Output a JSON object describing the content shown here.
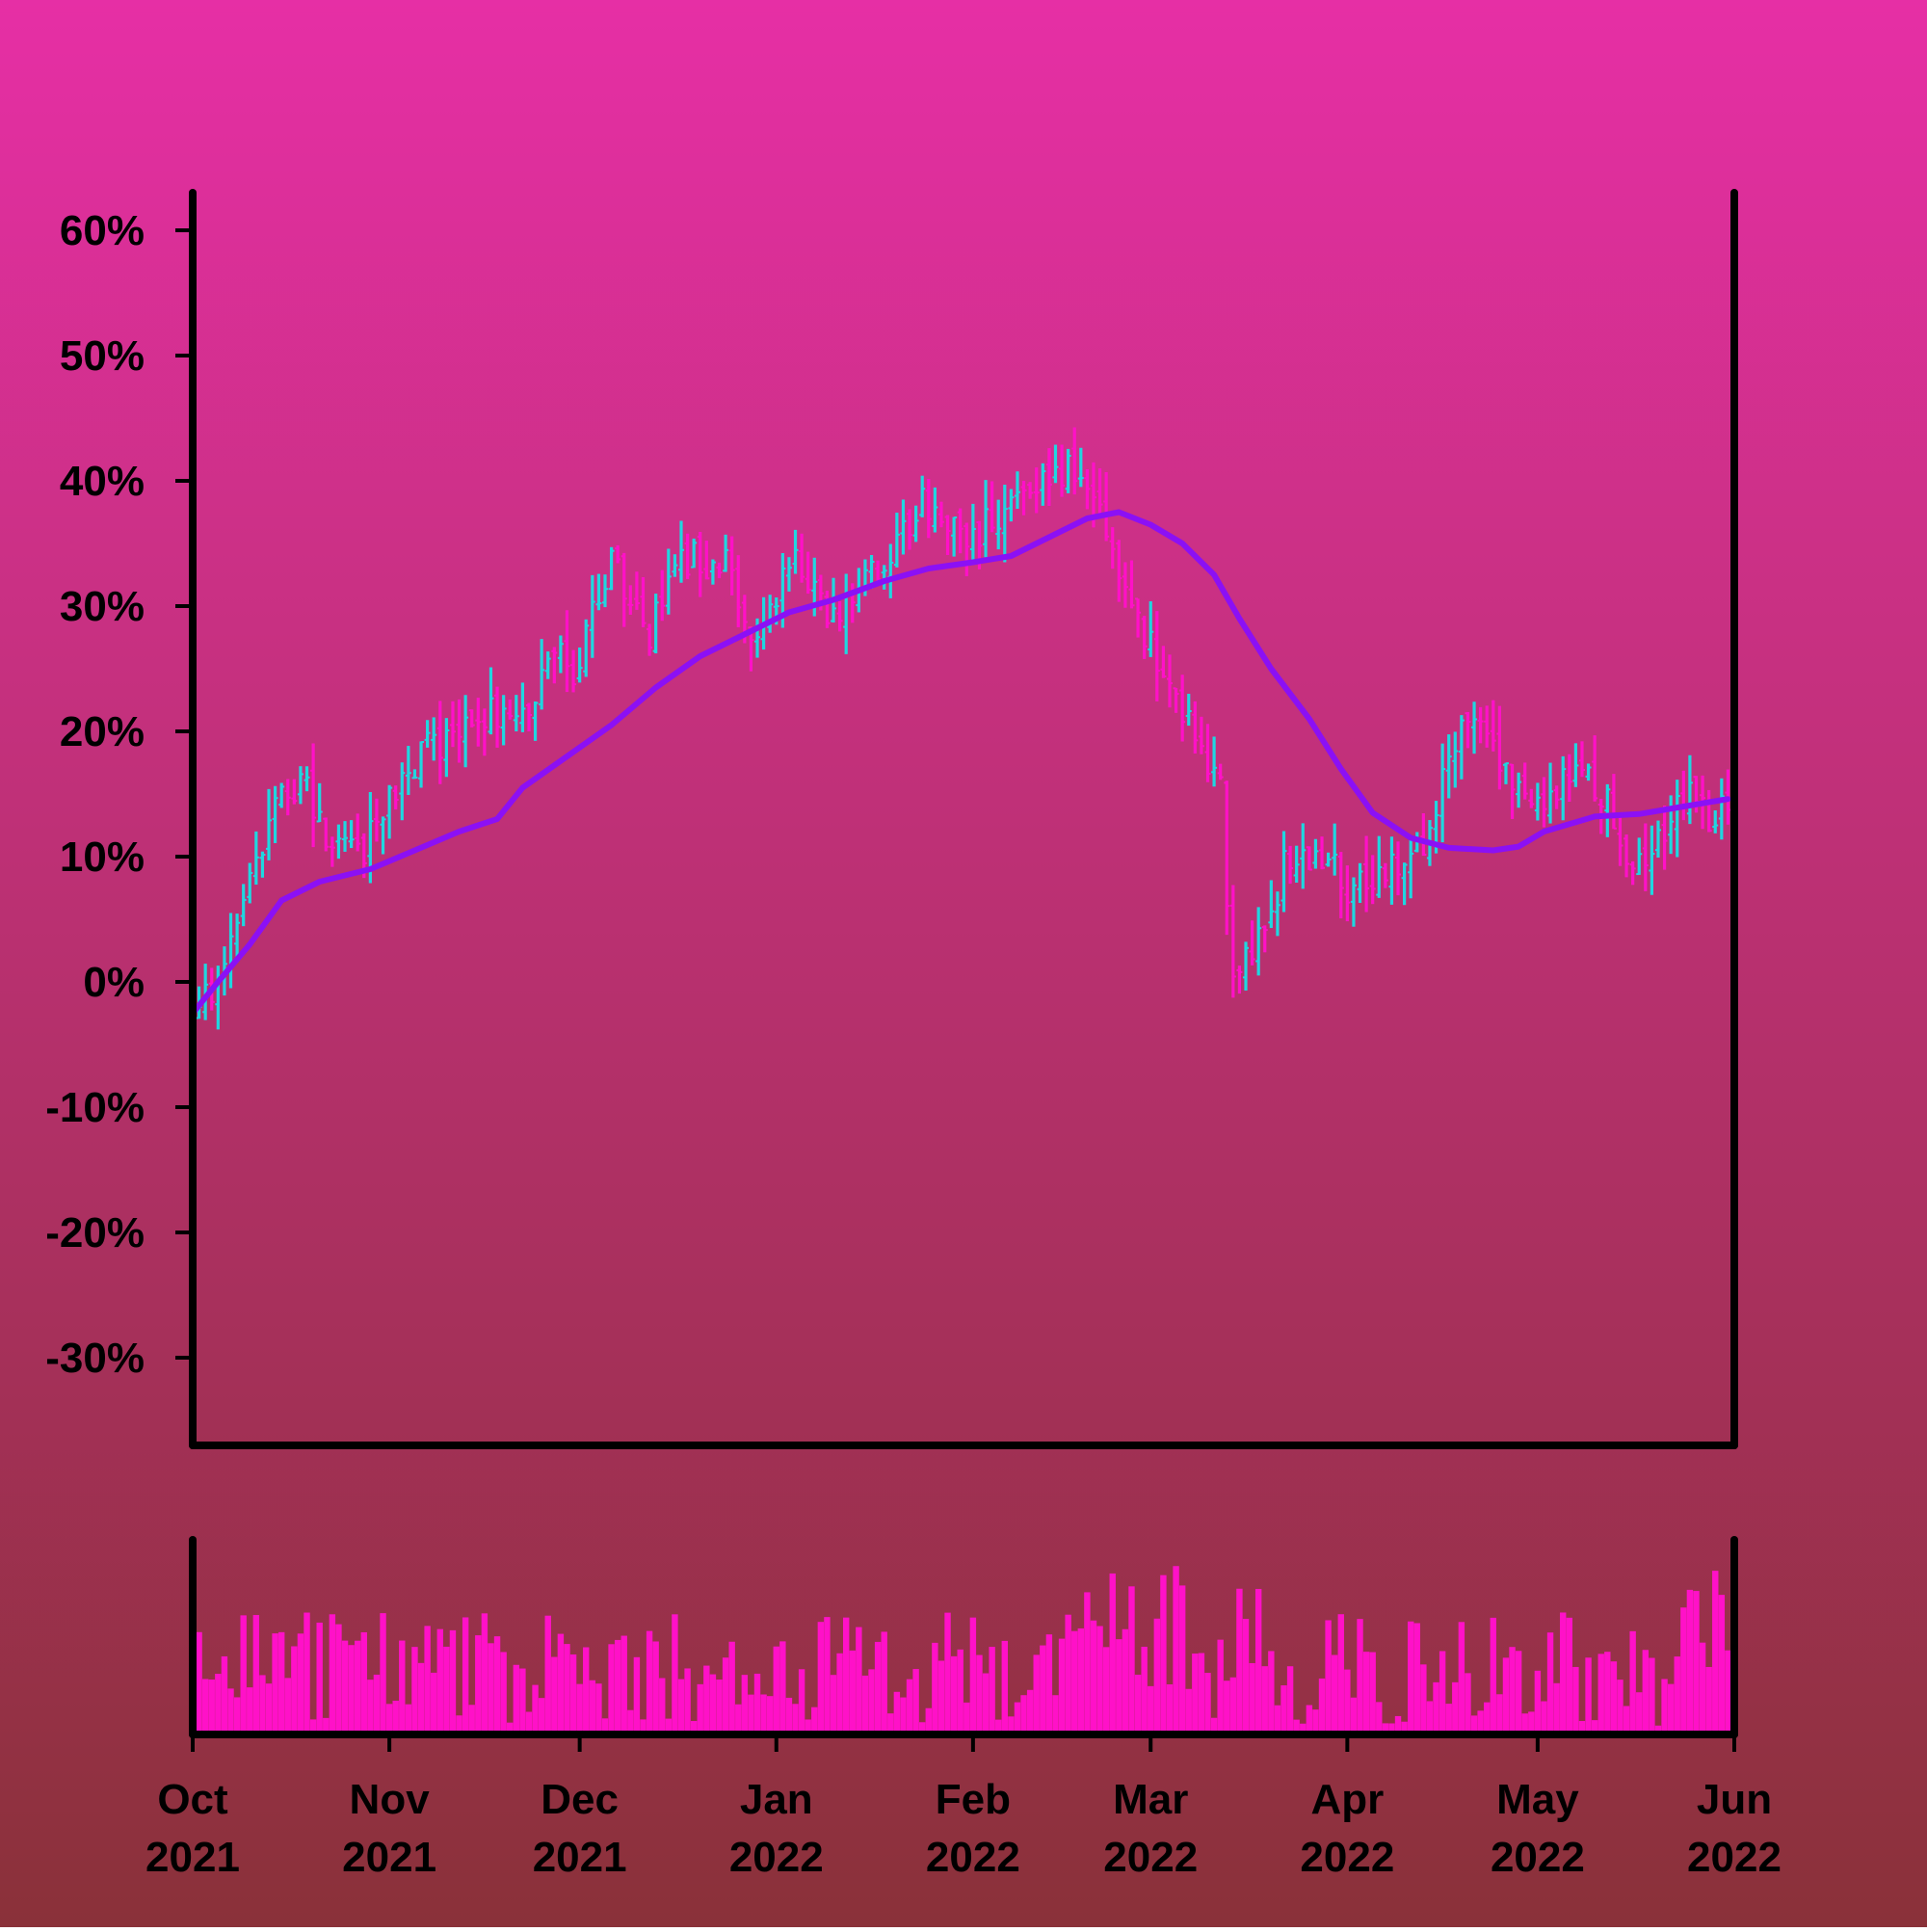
{
  "colors": {
    "background_top": "#E62FA5",
    "background_bottom": "#8A3139",
    "up": "#1FD7E0",
    "down": "#FF11C8",
    "moving_average": "#8B10F5",
    "volume": "#FF11C8",
    "axis": "#000000"
  },
  "chart_data": {
    "type": "ohlc",
    "title": "",
    "xlabel": "",
    "ylabel": "",
    "x_range": [
      "2021-10-01",
      "2022-06-01"
    ],
    "y_range": [
      -0.37,
      0.63
    ],
    "y_scale": "linear",
    "y_ticks": [
      -0.3,
      -0.2,
      -0.1,
      0.0,
      0.1,
      0.2,
      0.3,
      0.4,
      0.5,
      0.6
    ],
    "y_tick_labels": [
      "-30%",
      "-20%",
      "-10%",
      "0%",
      "10%",
      "20%",
      "30%",
      "40%",
      "50%",
      "60%"
    ],
    "x_ticks": [
      {
        "date": "2021-10-01",
        "month": "Oct",
        "year": "2021"
      },
      {
        "date": "2021-11-01",
        "month": "Nov",
        "year": "2021"
      },
      {
        "date": "2021-12-01",
        "month": "Dec",
        "year": "2021"
      },
      {
        "date": "2022-01-01",
        "month": "Jan",
        "year": "2022"
      },
      {
        "date": "2022-02-01",
        "month": "Feb",
        "year": "2022"
      },
      {
        "date": "2022-03-01",
        "month": "Mar",
        "year": "2022"
      },
      {
        "date": "2022-04-01",
        "month": "Apr",
        "year": "2022"
      },
      {
        "date": "2022-05-01",
        "month": "May",
        "year": "2022"
      },
      {
        "date": "2022-06-01",
        "month": "Jun",
        "year": "2022"
      }
    ],
    "grid": false,
    "legend": "none",
    "price_anchors": [
      [
        "2021-10-01",
        -0.03
      ],
      [
        "2021-10-05",
        0.0
      ],
      [
        "2021-10-08",
        0.05
      ],
      [
        "2021-10-14",
        0.14
      ],
      [
        "2021-10-18",
        0.16
      ],
      [
        "2021-10-22",
        0.12
      ],
      [
        "2021-10-27",
        0.1
      ],
      [
        "2021-11-03",
        0.16
      ],
      [
        "2021-11-08",
        0.19
      ],
      [
        "2021-11-13",
        0.2
      ],
      [
        "2021-11-19",
        0.22
      ],
      [
        "2021-11-23",
        0.21
      ],
      [
        "2021-11-27",
        0.27
      ],
      [
        "2021-11-30",
        0.24
      ],
      [
        "2021-12-06",
        0.34
      ],
      [
        "2021-12-12",
        0.28
      ],
      [
        "2021-12-18",
        0.34
      ],
      [
        "2021-12-24",
        0.33
      ],
      [
        "2021-12-28",
        0.28
      ],
      [
        "2022-01-04",
        0.33
      ],
      [
        "2022-01-10",
        0.29
      ],
      [
        "2022-01-18",
        0.34
      ],
      [
        "2022-01-24",
        0.38
      ],
      [
        "2022-02-01",
        0.35
      ],
      [
        "2022-02-07",
        0.39
      ],
      [
        "2022-02-13",
        0.41
      ],
      [
        "2022-02-18",
        0.41
      ],
      [
        "2022-02-22",
        0.36
      ],
      [
        "2022-02-27",
        0.29
      ],
      [
        "2022-03-04",
        0.24
      ],
      [
        "2022-03-09",
        0.19
      ],
      [
        "2022-03-12",
        0.15
      ],
      [
        "2022-03-14",
        0.0
      ],
      [
        "2022-03-17",
        0.02
      ],
      [
        "2022-03-22",
        0.09
      ],
      [
        "2022-03-28",
        0.1
      ],
      [
        "2022-04-02",
        0.07
      ],
      [
        "2022-04-08",
        0.09
      ],
      [
        "2022-04-13",
        0.11
      ],
      [
        "2022-04-17",
        0.18
      ],
      [
        "2022-04-21",
        0.21
      ],
      [
        "2022-04-27",
        0.16
      ],
      [
        "2022-05-03",
        0.15
      ],
      [
        "2022-05-08",
        0.18
      ],
      [
        "2022-05-12",
        0.14
      ],
      [
        "2022-05-16",
        0.09
      ],
      [
        "2022-05-21",
        0.12
      ],
      [
        "2022-05-25",
        0.16
      ],
      [
        "2022-05-28",
        0.12
      ],
      [
        "2022-05-31",
        0.14
      ]
    ],
    "moving_average": [
      [
        "2021-10-01",
        -0.025
      ],
      [
        "2021-10-05",
        0.0
      ],
      [
        "2021-10-10",
        0.03
      ],
      [
        "2021-10-15",
        0.065
      ],
      [
        "2021-10-21",
        0.08
      ],
      [
        "2021-10-29",
        0.09
      ],
      [
        "2021-11-05",
        0.105
      ],
      [
        "2021-11-12",
        0.12
      ],
      [
        "2021-11-18",
        0.13
      ],
      [
        "2021-11-22",
        0.155
      ],
      [
        "2021-11-29",
        0.18
      ],
      [
        "2021-12-06",
        0.205
      ],
      [
        "2021-12-13",
        0.235
      ],
      [
        "2021-12-20",
        0.26
      ],
      [
        "2021-12-26",
        0.275
      ],
      [
        "2022-01-03",
        0.295
      ],
      [
        "2022-01-10",
        0.305
      ],
      [
        "2022-01-18",
        0.32
      ],
      [
        "2022-01-25",
        0.33
      ],
      [
        "2022-02-01",
        0.335
      ],
      [
        "2022-02-07",
        0.34
      ],
      [
        "2022-02-13",
        0.355
      ],
      [
        "2022-02-19",
        0.37
      ],
      [
        "2022-02-24",
        0.375
      ],
      [
        "2022-03-01",
        0.365
      ],
      [
        "2022-03-06",
        0.35
      ],
      [
        "2022-03-11",
        0.325
      ],
      [
        "2022-03-15",
        0.29
      ],
      [
        "2022-03-20",
        0.25
      ],
      [
        "2022-03-26",
        0.21
      ],
      [
        "2022-03-31",
        0.17
      ],
      [
        "2022-04-05",
        0.135
      ],
      [
        "2022-04-11",
        0.115
      ],
      [
        "2022-04-17",
        0.107
      ],
      [
        "2022-04-24",
        0.105
      ],
      [
        "2022-04-28",
        0.108
      ],
      [
        "2022-05-02",
        0.12
      ],
      [
        "2022-05-10",
        0.132
      ],
      [
        "2022-05-17",
        0.134
      ],
      [
        "2022-05-24",
        0.14
      ],
      [
        "2022-05-31",
        0.146
      ]
    ],
    "volume_panel": {
      "series": "volume",
      "y_range": [
        0,
        1
      ],
      "high_activity_windows": [
        [
          "2022-02-18",
          "2022-03-10"
        ],
        [
          "2022-03-12",
          "2022-03-20"
        ],
        [
          "2022-05-24",
          "2022-06-01"
        ]
      ]
    }
  }
}
